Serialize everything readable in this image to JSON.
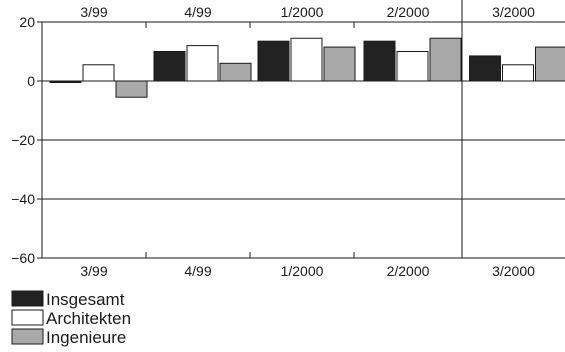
{
  "chart_data": {
    "type": "bar",
    "title": "",
    "xlabel": "",
    "ylabel": "",
    "categories": [
      "3/99",
      "4/99",
      "1/2000",
      "2/2000",
      "3/2000"
    ],
    "series": [
      {
        "name": "Insgesamt",
        "color": "#222222",
        "values": [
          -0.5,
          10,
          13.5,
          13.5,
          8.5
        ]
      },
      {
        "name": "Architekten",
        "color": "#ffffff",
        "values": [
          5.5,
          12,
          14.5,
          10,
          5.5
        ]
      },
      {
        "name": "Ingenieure",
        "color": "#a9a9a9",
        "values": [
          -5.5,
          6,
          11.5,
          14.5,
          11.5
        ]
      }
    ],
    "ylim": [
      -60,
      20
    ],
    "yticks": [
      -60,
      -40,
      -20,
      0,
      20
    ],
    "ytick_labels": [
      "−60",
      "−40",
      "−20",
      "0",
      "20"
    ],
    "grid": true,
    "legend_position": "bottom-left"
  }
}
